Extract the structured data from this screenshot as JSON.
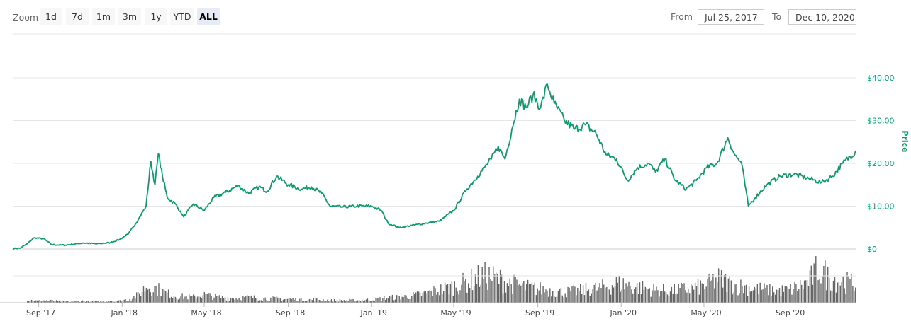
{
  "toolbar": {
    "zoom_label": "Zoom",
    "zoom_buttons": [
      "1d",
      "7d",
      "1m",
      "3m",
      "1y",
      "YTD",
      "ALL"
    ],
    "active_zoom": "ALL",
    "from_label": "From",
    "from_value": "Jul 25, 2017",
    "to_label": "To",
    "to_value": "Dec 10, 2020"
  },
  "colors": {
    "price_line": "#0d9b6e",
    "volume_bars": "#666666",
    "grid": "#e6e6e6"
  },
  "chart_data": {
    "type": "line",
    "title": "",
    "x_type": "date",
    "x_range": [
      "2017-07-25",
      "2020-12-10"
    ],
    "x_ticks": [
      {
        "date": "2017-09-01",
        "label": "Sep '17"
      },
      {
        "date": "2018-01-01",
        "label": "Jan '18"
      },
      {
        "date": "2018-05-01",
        "label": "May '18"
      },
      {
        "date": "2018-09-01",
        "label": "Sep '18"
      },
      {
        "date": "2019-01-01",
        "label": "Jan '19"
      },
      {
        "date": "2019-05-01",
        "label": "May '19"
      },
      {
        "date": "2019-09-01",
        "label": "Sep '19"
      },
      {
        "date": "2020-01-01",
        "label": "Jan '20"
      },
      {
        "date": "2020-05-01",
        "label": "May '20"
      },
      {
        "date": "2020-09-01",
        "label": "Sep '20"
      }
    ],
    "y_axis": {
      "title": "Price",
      "ylim": [
        0,
        40
      ],
      "ticks": [
        0,
        10,
        20,
        30,
        40
      ],
      "tick_labels": [
        "$0",
        "$10,00",
        "$20,00",
        "$30,00",
        "$40,00"
      ],
      "position": "right",
      "grid": true
    },
    "series": [
      {
        "kind": "line",
        "points": [
          [
            "2017-07-25",
            0.1
          ],
          [
            "2017-08-05",
            0.2
          ],
          [
            "2017-08-15",
            1.2
          ],
          [
            "2017-08-25",
            2.6
          ],
          [
            "2017-09-08",
            2.4
          ],
          [
            "2017-09-20",
            1.0
          ],
          [
            "2017-10-10",
            0.9
          ],
          [
            "2017-11-05",
            1.4
          ],
          [
            "2017-11-25",
            1.2
          ],
          [
            "2017-12-15",
            1.5
          ],
          [
            "2017-12-28",
            2.2
          ],
          [
            "2018-01-10",
            3.5
          ],
          [
            "2018-01-25",
            7.0
          ],
          [
            "2018-02-05",
            10.0
          ],
          [
            "2018-02-12",
            20.5
          ],
          [
            "2018-02-18",
            15.0
          ],
          [
            "2018-02-23",
            22.3
          ],
          [
            "2018-03-01",
            17.0
          ],
          [
            "2018-03-08",
            12.0
          ],
          [
            "2018-03-20",
            10.5
          ],
          [
            "2018-04-01",
            7.5
          ],
          [
            "2018-04-15",
            10.5
          ],
          [
            "2018-05-01",
            9.0
          ],
          [
            "2018-05-15",
            12.0
          ],
          [
            "2018-06-01",
            13.2
          ],
          [
            "2018-06-20",
            14.8
          ],
          [
            "2018-07-05",
            13.0
          ],
          [
            "2018-07-20",
            14.5
          ],
          [
            "2018-08-01",
            13.5
          ],
          [
            "2018-08-15",
            17.0
          ],
          [
            "2018-09-01",
            15.0
          ],
          [
            "2018-09-20",
            14.0
          ],
          [
            "2018-10-05",
            14.5
          ],
          [
            "2018-10-20",
            13.0
          ],
          [
            "2018-11-01",
            10.0
          ],
          [
            "2018-11-20",
            9.8
          ],
          [
            "2018-12-10",
            10.0
          ],
          [
            "2019-01-01",
            10.0
          ],
          [
            "2019-01-15",
            9.0
          ],
          [
            "2019-01-25",
            6.0
          ],
          [
            "2019-02-10",
            5.0
          ],
          [
            "2019-03-01",
            5.5
          ],
          [
            "2019-03-20",
            6.0
          ],
          [
            "2019-04-10",
            6.5
          ],
          [
            "2019-05-01",
            9.0
          ],
          [
            "2019-05-20",
            14.0
          ],
          [
            "2019-06-05",
            17.0
          ],
          [
            "2019-06-25",
            21.0
          ],
          [
            "2019-07-05",
            24.0
          ],
          [
            "2019-07-15",
            21.0
          ],
          [
            "2019-07-25",
            28.0
          ],
          [
            "2019-08-05",
            35.0
          ],
          [
            "2019-08-15",
            33.0
          ],
          [
            "2019-08-25",
            36.0
          ],
          [
            "2019-09-05",
            33.0
          ],
          [
            "2019-09-15",
            38.5
          ],
          [
            "2019-09-25",
            34.0
          ],
          [
            "2019-10-10",
            30.0
          ],
          [
            "2019-10-25",
            28.0
          ],
          [
            "2019-11-10",
            29.0
          ],
          [
            "2019-11-25",
            27.0
          ],
          [
            "2019-12-10",
            22.0
          ],
          [
            "2019-12-25",
            21.0
          ],
          [
            "2020-01-10",
            16.0
          ],
          [
            "2020-01-25",
            19.0
          ],
          [
            "2020-02-10",
            20.0
          ],
          [
            "2020-02-20",
            18.0
          ],
          [
            "2020-03-05",
            21.0
          ],
          [
            "2020-03-20",
            16.0
          ],
          [
            "2020-04-05",
            14.0
          ],
          [
            "2020-04-20",
            16.0
          ],
          [
            "2020-05-05",
            19.0
          ],
          [
            "2020-05-20",
            20.0
          ],
          [
            "2020-06-05",
            26.0
          ],
          [
            "2020-06-15",
            22.0
          ],
          [
            "2020-06-25",
            20.0
          ],
          [
            "2020-07-05",
            10.0
          ],
          [
            "2020-07-15",
            12.0
          ],
          [
            "2020-08-01",
            15.0
          ],
          [
            "2020-08-20",
            17.0
          ],
          [
            "2020-09-10",
            17.5
          ],
          [
            "2020-10-01",
            16.5
          ],
          [
            "2020-10-20",
            15.5
          ],
          [
            "2020-11-05",
            17.0
          ],
          [
            "2020-11-20",
            20.0
          ],
          [
            "2020-12-10",
            23.0
          ]
        ]
      },
      {
        "kind": "volume_bars",
        "relative_values": [
          5,
          3,
          4,
          3,
          2,
          2,
          3,
          2,
          2,
          3,
          3,
          6,
          12,
          28,
          24,
          16,
          12,
          10,
          9,
          14,
          11,
          9,
          8,
          8,
          9,
          8,
          7,
          7,
          6,
          6,
          5,
          5,
          5,
          4,
          4,
          4,
          4,
          5,
          6,
          8,
          9,
          10,
          12,
          14,
          18,
          22,
          26,
          30,
          36,
          42,
          44,
          40,
          34,
          30,
          26,
          24,
          22,
          20,
          18,
          18,
          20,
          22,
          24,
          26,
          32,
          30,
          26,
          24,
          22,
          20,
          20,
          22,
          24,
          26,
          30,
          40,
          34,
          28,
          26,
          24,
          22,
          20,
          20,
          22,
          28,
          36,
          60,
          42,
          38,
          34,
          30
        ]
      }
    ],
    "legend": "none"
  }
}
